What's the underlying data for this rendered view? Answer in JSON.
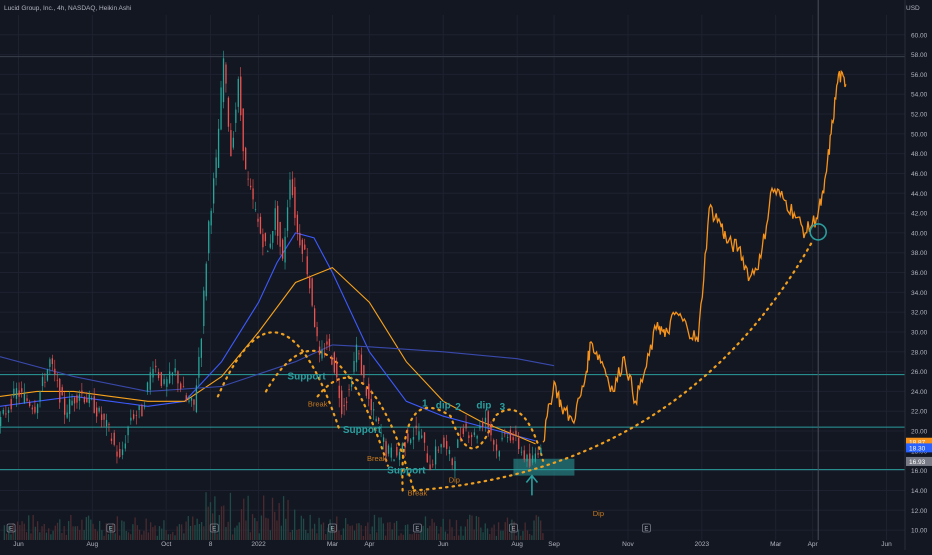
{
  "header": {
    "symbol_line": "Lucid Group, Inc., 4h, NASDAQ, Heikin Ashi",
    "currency": "USD"
  },
  "colors": {
    "background": "#131722",
    "grid": "#1e2230",
    "axis_text": "#b2b5be",
    "candle_up": "#26a69a",
    "candle_down": "#ef5350",
    "projection": "#f7931a",
    "support_line": "#2a9d9c",
    "ma_blue": "#3d5afe",
    "ma_orange": "#f7a21b",
    "ma_navy": "#3949ab",
    "dotted": "#f0a020",
    "annotation_teal": "#2a9d9c",
    "annotation_orange": "#c87a1e",
    "volume": "#2e4a4a"
  },
  "chart_data": {
    "type": "line",
    "title": "Lucid Group, Inc., 4h, NASDAQ, Heikin Ashi",
    "ylabel": "USD",
    "ylim": [
      9,
      62
    ],
    "y_ticks": [
      10,
      12,
      14,
      16,
      18,
      20,
      22,
      24,
      26,
      28,
      30,
      32,
      34,
      36,
      38,
      40,
      42,
      44,
      46,
      48,
      50,
      52,
      54,
      56,
      58,
      60
    ],
    "y_tick_labels": [
      "10.00",
      "12.00",
      "14.00",
      "16.00",
      "18.00",
      "20.00",
      "22.00",
      "24.00",
      "26.00",
      "28.00",
      "30.00",
      "32.00",
      "34.00",
      "36.00",
      "38.00",
      "40.00",
      "42.00",
      "44.00",
      "46.00",
      "48.00",
      "50.00",
      "52.00",
      "54.00",
      "56.00",
      "58.00",
      "60.00"
    ],
    "x_ticks": [
      {
        "label": "Jun",
        "t": 0.5
      },
      {
        "label": "Aug",
        "t": 2.5
      },
      {
        "label": "Oct",
        "t": 4.5
      },
      {
        "label": "8",
        "t": 5.7
      },
      {
        "label": "2022",
        "t": 7.0
      },
      {
        "label": "Mar",
        "t": 9.0
      },
      {
        "label": "Apr",
        "t": 10.0
      },
      {
        "label": "Jun",
        "t": 12.0
      },
      {
        "label": "Aug",
        "t": 14.0
      },
      {
        "label": "Sep",
        "t": 15.0
      },
      {
        "label": "Nov",
        "t": 17.0
      },
      {
        "label": "2023",
        "t": 19.0
      },
      {
        "label": "Mar",
        "t": 21.0
      },
      {
        "label": "Apr",
        "t": 22.0
      },
      {
        "label": "Jun",
        "t": 24.0
      }
    ],
    "grid": true,
    "horizontal_levels": [
      25.7,
      20.4,
      16.1,
      57.8
    ],
    "price_labels": [
      {
        "text": "18.87",
        "value": 18.87,
        "color": "#f7931a"
      },
      {
        "text": "18.30",
        "value": 18.3,
        "color": "#2962ff"
      },
      {
        "text": "16.93",
        "value": 16.93,
        "color": "#787b86"
      }
    ],
    "series": [
      {
        "type": "candle",
        "x": [
          0,
          0.5,
          1.0,
          1.4,
          1.8,
          2.2,
          2.6,
          3.0,
          3.3,
          3.6,
          3.9,
          4.2,
          4.5,
          4.8,
          5.1,
          5.3,
          5.5,
          5.7,
          5.9,
          6.1,
          6.3,
          6.5,
          6.7,
          6.9,
          7.1,
          7.3,
          7.5,
          7.7,
          7.9,
          8.1,
          8.3,
          8.5,
          8.7,
          8.9,
          9.1,
          9.3,
          9.5,
          9.7,
          9.9,
          10.1,
          10.3,
          10.5,
          10.8,
          11.1,
          11.4,
          11.7,
          12.0,
          12.3,
          12.6,
          12.9,
          13.2,
          13.5,
          13.8,
          14.1,
          14.4,
          14.7
        ],
        "values": [
          20.5,
          24.0,
          22.5,
          27.0,
          22.0,
          24.0,
          22.5,
          20.0,
          17.0,
          21.5,
          22.0,
          27.0,
          24.5,
          26.0,
          23.0,
          22.5,
          30.0,
          41.0,
          47.0,
          57.5,
          48.0,
          55.0,
          46.0,
          43.0,
          40.0,
          38.0,
          42.0,
          37.0,
          46.0,
          40.0,
          38.0,
          33.0,
          27.0,
          29.0,
          26.5,
          22.5,
          24.0,
          28.5,
          25.0,
          22.0,
          20.5,
          18.0,
          17.5,
          19.5,
          20.0,
          16.5,
          19.0,
          16.8,
          20.5,
          19.5,
          21.5,
          18.0,
          20.0,
          18.5,
          16.5,
          18.87
        ]
      },
      {
        "type": "projection",
        "x": [
          14.7,
          15.0,
          15.2,
          15.5,
          15.8,
          16.0,
          16.3,
          16.6,
          16.9,
          17.2,
          17.5,
          17.8,
          18.0,
          18.3,
          18.6,
          18.9,
          19.2,
          19.5,
          19.7,
          20.0,
          20.3,
          20.6,
          20.9,
          21.2,
          21.5,
          21.8,
          22.1,
          22.3,
          22.5,
          22.7,
          22.9
        ],
        "values": [
          18.87,
          25.0,
          22.5,
          21.0,
          24.5,
          29.0,
          27.0,
          24.0,
          27.5,
          23.0,
          26.5,
          31.0,
          29.5,
          32.0,
          30.5,
          29.0,
          42.5,
          41.0,
          39.0,
          38.5,
          35.5,
          37.5,
          44.5,
          43.5,
          42.0,
          40.0,
          41.5,
          44.0,
          50.0,
          56.0,
          55.0
        ]
      },
      {
        "name": "",
        "type": "line",
        "x": [
          0,
          1,
          2,
          3,
          4,
          5,
          6,
          7,
          7.5,
          8,
          8.5,
          9,
          10,
          11,
          12,
          13,
          14,
          14.5
        ],
        "values": [
          22.5,
          23.0,
          23.5,
          23.0,
          22.5,
          23.0,
          27.0,
          33.0,
          37.0,
          40.0,
          39.5,
          36.0,
          28.0,
          23.0,
          21.5,
          20.5,
          19.5,
          19.0
        ]
      },
      {
        "name": "",
        "type": "line",
        "x": [
          0,
          1,
          2,
          3,
          4,
          5,
          6,
          7,
          8,
          9,
          10,
          11,
          12,
          13,
          14,
          14.5
        ],
        "values": [
          23.5,
          24.0,
          24.0,
          23.5,
          23.0,
          23.0,
          25.5,
          30.0,
          35.0,
          36.5,
          33.0,
          27.0,
          23.0,
          21.0,
          19.5,
          18.7
        ]
      },
      {
        "name": "",
        "type": "line",
        "x": [
          0,
          2,
          4,
          6,
          8,
          9,
          10,
          12,
          14,
          15
        ],
        "values": [
          27.5,
          25.5,
          24.0,
          24.5,
          27.0,
          28.7,
          28.5,
          28.0,
          27.3,
          26.6
        ]
      }
    ],
    "annotations": [
      {
        "text": "Support",
        "x": 8.3,
        "y": 25.2,
        "color": "#2a9d9c"
      },
      {
        "text": "Break",
        "x": 8.6,
        "y": 22.5,
        "color": "#c87a1e"
      },
      {
        "text": "Support",
        "x": 9.8,
        "y": 19.8,
        "color": "#2a9d9c"
      },
      {
        "text": "Break",
        "x": 10.2,
        "y": 17.0,
        "color": "#c87a1e"
      },
      {
        "text": "Support",
        "x": 11.0,
        "y": 15.7,
        "color": "#2a9d9c"
      },
      {
        "text": "Break",
        "x": 11.3,
        "y": 13.5,
        "color": "#c87a1e"
      },
      {
        "text": "1",
        "x": 11.5,
        "y": 22.5,
        "color": "#2a9d9c"
      },
      {
        "text": "dip",
        "x": 12.0,
        "y": 22.3,
        "color": "#2a9d9c"
      },
      {
        "text": "2",
        "x": 12.4,
        "y": 22.1,
        "color": "#2a9d9c"
      },
      {
        "text": "dip",
        "x": 13.1,
        "y": 22.3,
        "color": "#2a9d9c"
      },
      {
        "text": "3",
        "x": 13.6,
        "y": 22.1,
        "color": "#2a9d9c"
      },
      {
        "text": "Dip",
        "x": 12.3,
        "y": 14.8,
        "color": "#c87a1e"
      },
      {
        "text": "Dip",
        "x": 16.2,
        "y": 11.4,
        "color": "#c87a1e"
      }
    ],
    "event_markers": [
      {
        "text": "E",
        "x": 0.3
      },
      {
        "text": "E",
        "x": 3.0
      },
      {
        "text": "E",
        "x": 5.8
      },
      {
        "text": "E",
        "x": 9.0
      },
      {
        "text": "E",
        "x": 11.3
      },
      {
        "text": "E",
        "x": 13.9
      },
      {
        "text": "E",
        "x": 17.5
      }
    ]
  }
}
